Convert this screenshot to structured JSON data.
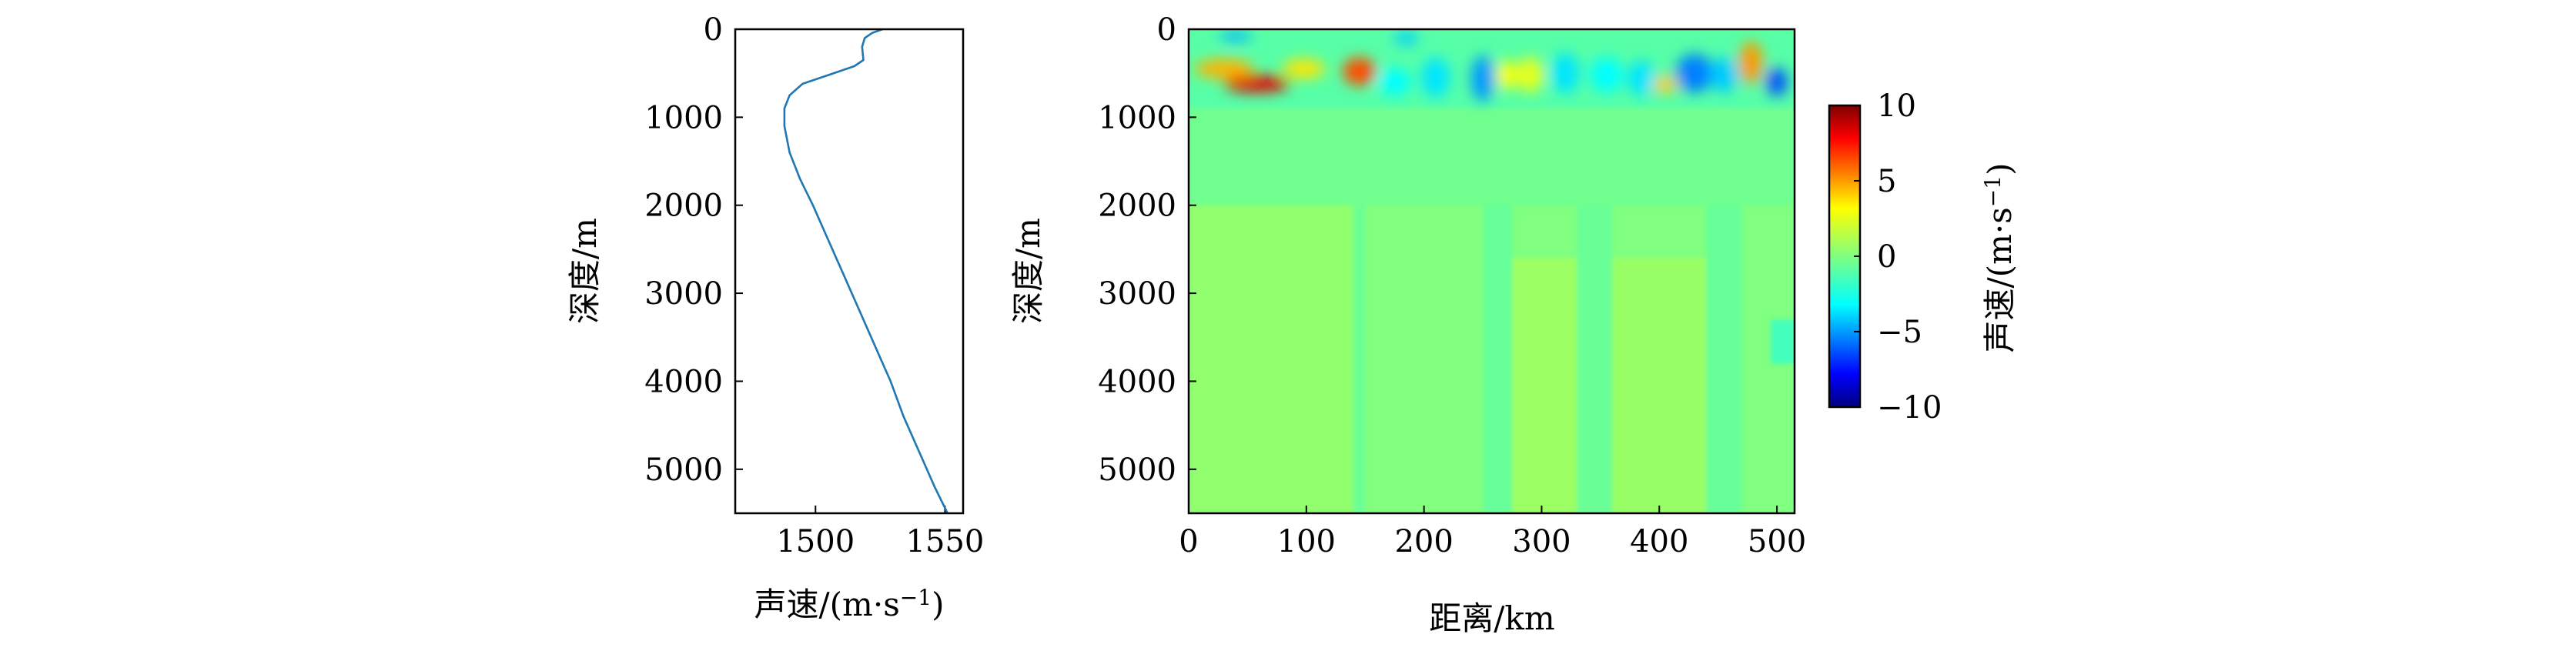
{
  "chart_data": [
    {
      "type": "line",
      "xlabel": "声速/(m·s",
      "xlabel_sup": "−1",
      "xlabel_close": ")",
      "ylabel": "深度/m",
      "xlim": [
        1469,
        1557
      ],
      "ylim": [
        0,
        5500
      ],
      "y_inverted": true,
      "xticks": [
        1500,
        1550
      ],
      "xtick_labels": [
        "1500",
        "1550"
      ],
      "yticks": [
        0,
        1000,
        2000,
        3000,
        4000,
        5000
      ],
      "ytick_labels": [
        "0",
        "1000",
        "2000",
        "3000",
        "4000",
        "5000"
      ],
      "grid": false,
      "color": "#1f77b4",
      "series": [
        {
          "x": [
            1526,
            1522,
            1519,
            1518,
            1518.5,
            1515,
            1505,
            1495,
            1490,
            1488,
            1488,
            1490,
            1494,
            1499,
            1505,
            1511,
            1517,
            1523,
            1529,
            1534,
            1540,
            1546,
            1551
          ],
          "y": [
            0,
            40,
            100,
            200,
            350,
            420,
            520,
            620,
            750,
            900,
            1100,
            1400,
            1700,
            2000,
            2400,
            2800,
            3200,
            3600,
            4000,
            4400,
            4800,
            5200,
            5500
          ]
        }
      ]
    },
    {
      "type": "heatmap",
      "xlabel": "距离/km",
      "ylabel": "深度/m",
      "xlim": [
        0,
        515
      ],
      "ylim": [
        0,
        5500
      ],
      "y_inverted": true,
      "xticks": [
        0,
        100,
        200,
        300,
        400,
        500
      ],
      "xtick_labels": [
        "0",
        "100",
        "200",
        "300",
        "400",
        "500"
      ],
      "yticks": [
        0,
        1000,
        2000,
        3000,
        4000,
        5000
      ],
      "ytick_labels": [
        "0",
        "1000",
        "2000",
        "3000",
        "4000",
        "5000"
      ],
      "colormap": "jet",
      "clim": [
        -10,
        10
      ],
      "background_value": 0,
      "colorbar": {
        "label": "声速/(m·s",
        "label_sup": "−1",
        "label_close": ")",
        "ticks": [
          10,
          5,
          0,
          -5,
          -10
        ],
        "tick_labels": [
          "10",
          "5",
          "0",
          "−5",
          "−10"
        ]
      },
      "bands": [
        {
          "x0": 0,
          "x1": 515,
          "y0": 0,
          "y1": 900,
          "value": -0.8
        },
        {
          "x0": 0,
          "x1": 515,
          "y0": 900,
          "y1": 2000,
          "value": -0.3
        },
        {
          "x0": 0,
          "x1": 140,
          "y0": 2000,
          "y1": 5500,
          "value": 0.35
        },
        {
          "x0": 140,
          "x1": 150,
          "y0": 2000,
          "y1": 5500,
          "value": -0.4
        },
        {
          "x0": 150,
          "x1": 250,
          "y0": 2000,
          "y1": 5500,
          "value": 0.05
        },
        {
          "x0": 250,
          "x1": 275,
          "y0": 2000,
          "y1": 5500,
          "value": -0.5
        },
        {
          "x0": 275,
          "x1": 330,
          "y0": 2600,
          "y1": 5500,
          "value": 0.55
        },
        {
          "x0": 330,
          "x1": 360,
          "y0": 2000,
          "y1": 5500,
          "value": -0.45
        },
        {
          "x0": 360,
          "x1": 440,
          "y0": 2600,
          "y1": 5500,
          "value": 0.5
        },
        {
          "x0": 440,
          "x1": 470,
          "y0": 2000,
          "y1": 5500,
          "value": -0.5
        },
        {
          "x0": 495,
          "x1": 515,
          "y0": 3300,
          "y1": 3800,
          "value": -1.2
        }
      ],
      "anomalies": [
        {
          "x": 40,
          "y": 80,
          "rx": 14,
          "ry": 60,
          "value": -4
        },
        {
          "x": 185,
          "y": 100,
          "rx": 10,
          "ry": 80,
          "value": -3.5
        },
        {
          "x": 30,
          "y": 450,
          "rx": 25,
          "ry": 110,
          "value": 4
        },
        {
          "x": 58,
          "y": 620,
          "rx": 28,
          "ry": 95,
          "value": 8
        },
        {
          "x": 98,
          "y": 450,
          "rx": 18,
          "ry": 110,
          "value": 3
        },
        {
          "x": 145,
          "y": 480,
          "rx": 14,
          "ry": 160,
          "value": 6
        },
        {
          "x": 175,
          "y": 600,
          "rx": 14,
          "ry": 160,
          "value": -2.5
        },
        {
          "x": 210,
          "y": 550,
          "rx": 12,
          "ry": 230,
          "value": -3
        },
        {
          "x": 250,
          "y": 560,
          "rx": 10,
          "ry": 260,
          "value": -4.5
        },
        {
          "x": 270,
          "y": 520,
          "rx": 8,
          "ry": 170,
          "value": 2.5
        },
        {
          "x": 290,
          "y": 520,
          "rx": 12,
          "ry": 200,
          "value": 2
        },
        {
          "x": 320,
          "y": 500,
          "rx": 12,
          "ry": 230,
          "value": -3
        },
        {
          "x": 355,
          "y": 520,
          "rx": 14,
          "ry": 200,
          "value": -2.5
        },
        {
          "x": 385,
          "y": 560,
          "rx": 12,
          "ry": 200,
          "value": -3
        },
        {
          "x": 405,
          "y": 630,
          "rx": 10,
          "ry": 100,
          "value": 3.5
        },
        {
          "x": 430,
          "y": 500,
          "rx": 16,
          "ry": 220,
          "value": -5
        },
        {
          "x": 455,
          "y": 520,
          "rx": 12,
          "ry": 200,
          "value": -3.5
        },
        {
          "x": 478,
          "y": 380,
          "rx": 10,
          "ry": 240,
          "value": 4.5
        },
        {
          "x": 500,
          "y": 600,
          "rx": 9,
          "ry": 160,
          "value": -6
        }
      ]
    }
  ]
}
